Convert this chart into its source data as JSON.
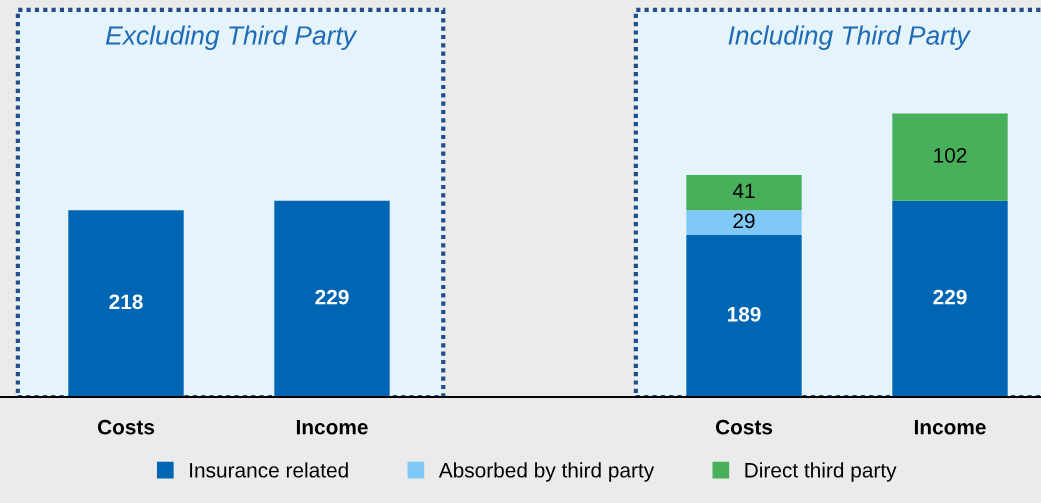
{
  "chart_data": [
    {
      "type": "bar",
      "stacked": true,
      "categories": [
        "Costs",
        "Income"
      ],
      "series": [
        {
          "name": "Insurance related",
          "color": "#0066b3",
          "values": [
            218,
            229
          ]
        }
      ],
      "bands": [
        {
          "axis": "x",
          "from": "Costs",
          "to": "Income",
          "label": "Excluding Third Party",
          "color": "#e5f3fa"
        }
      ],
      "data_labels": true,
      "legend": "bottom",
      "grid": false,
      "tick_labels": "x"
    },
    {
      "type": "bar",
      "stacked": true,
      "categories": [
        "Costs",
        "Income"
      ],
      "series": [
        {
          "name": "Insurance related",
          "color": "#0066b3",
          "values": [
            189,
            229
          ]
        },
        {
          "name": "Absorbed by third party",
          "color": "#7fc8f8",
          "values": [
            29,
            null
          ]
        },
        {
          "name": "Direct third party",
          "color": "#48b05a",
          "values": [
            41,
            102
          ]
        }
      ],
      "bands": [
        {
          "axis": "x",
          "from": "Costs",
          "to": "Income",
          "label": "Including Third Party",
          "color": "#e5f3fa"
        }
      ],
      "data_labels": true,
      "legend": "bottom",
      "grid": false,
      "tick_labels": "x"
    }
  ]
}
